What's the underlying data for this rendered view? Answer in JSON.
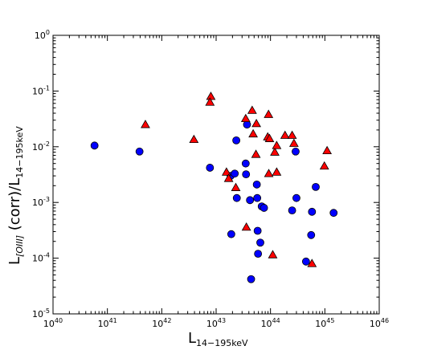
{
  "chart_data": {
    "type": "scatter",
    "title": "",
    "xlabel": "L",
    "xlabel_sub": "14−195keV",
    "ylabel_main": "L",
    "ylabel_sub": "[OIII]",
    "ylabel_mid": " (corr)/L",
    "ylabel_sub2": "14−195keV",
    "xscale": "log",
    "yscale": "log",
    "xlim": [
      1e+40,
      1e+46
    ],
    "ylim": [
      1e-05,
      1
    ],
    "grid": false,
    "x_ticks": [
      {
        "base": "10",
        "exp": "40"
      },
      {
        "base": "10",
        "exp": "41"
      },
      {
        "base": "10",
        "exp": "42"
      },
      {
        "base": "10",
        "exp": "43"
      },
      {
        "base": "10",
        "exp": "44"
      },
      {
        "base": "10",
        "exp": "45"
      },
      {
        "base": "10",
        "exp": "46"
      }
    ],
    "y_ticks": [
      {
        "base": "10",
        "exp": "0"
      },
      {
        "base": "10",
        "exp": "-1"
      },
      {
        "base": "10",
        "exp": "-2"
      },
      {
        "base": "10",
        "exp": "-3"
      },
      {
        "base": "10",
        "exp": "-4"
      },
      {
        "base": "10",
        "exp": "-5"
      }
    ],
    "series": [
      {
        "marker": "circle",
        "color": "#0000ff",
        "points": [
          [
            5.8e+40,
            0.0105
          ],
          [
            3.9e+41,
            0.0082
          ],
          [
            7.7e+42,
            0.0042
          ],
          [
            1.85e+43,
            0.003
          ],
          [
            2.2e+43,
            0.0033
          ],
          [
            2.35e+43,
            0.013
          ],
          [
            2.4e+43,
            0.0012
          ],
          [
            3.5e+43,
            0.005
          ],
          [
            3.55e+43,
            0.0032
          ],
          [
            3.7e+43,
            0.025
          ],
          [
            4.2e+43,
            0.0011
          ],
          [
            5.6e+43,
            0.0021
          ],
          [
            5.7e+43,
            0.0012
          ],
          [
            6.9e+43,
            0.00085
          ],
          [
            7.6e+43,
            0.0008
          ],
          [
            1.9e+43,
            0.00027
          ],
          [
            5.8e+43,
            0.00031
          ],
          [
            6.5e+43,
            0.00019
          ],
          [
            5.9e+43,
            0.00012
          ],
          [
            4.4e+43,
            4.2e-05
          ],
          [
            2.5e+44,
            0.00072
          ],
          [
            2.9e+44,
            0.0082
          ],
          [
            3e+44,
            0.0012
          ],
          [
            5.8e+44,
            0.00068
          ],
          [
            6.8e+44,
            0.0019
          ],
          [
            5.6e+44,
            0.00026
          ],
          [
            4.5e+44,
            8.7e-05
          ],
          [
            1.45e+45,
            0.00065
          ]
        ]
      },
      {
        "marker": "triangle",
        "color": "#ff0000",
        "points": [
          [
            5e+41,
            0.025
          ],
          [
            3.9e+42,
            0.0135
          ],
          [
            8e+42,
            0.08
          ],
          [
            7.7e+42,
            0.063
          ],
          [
            1.55e+43,
            0.0035
          ],
          [
            1.7e+43,
            0.0027
          ],
          [
            2.3e+43,
            0.00185
          ],
          [
            3.5e+43,
            0.032
          ],
          [
            4.6e+43,
            0.045
          ],
          [
            4.8e+43,
            0.017
          ],
          [
            5.5e+43,
            0.026
          ],
          [
            5.4e+43,
            0.0073
          ],
          [
            8.9e+43,
            0.015
          ],
          [
            9.2e+43,
            0.038
          ],
          [
            9.6e+43,
            0.014
          ],
          [
            9.3e+43,
            0.0033
          ],
          [
            1.2e+44,
            0.008
          ],
          [
            1.3e+44,
            0.0105
          ],
          [
            1.3e+44,
            0.0035
          ],
          [
            1.85e+44,
            0.016
          ],
          [
            2.5e+44,
            0.016
          ],
          [
            2.7e+44,
            0.0115
          ],
          [
            1.1e+44,
            0.000115
          ],
          [
            3.6e+43,
            0.00036
          ],
          [
            9.8e+44,
            0.0045
          ],
          [
            1.1e+45,
            0.0085
          ],
          [
            5.8e+44,
            8e-05
          ]
        ]
      }
    ]
  }
}
